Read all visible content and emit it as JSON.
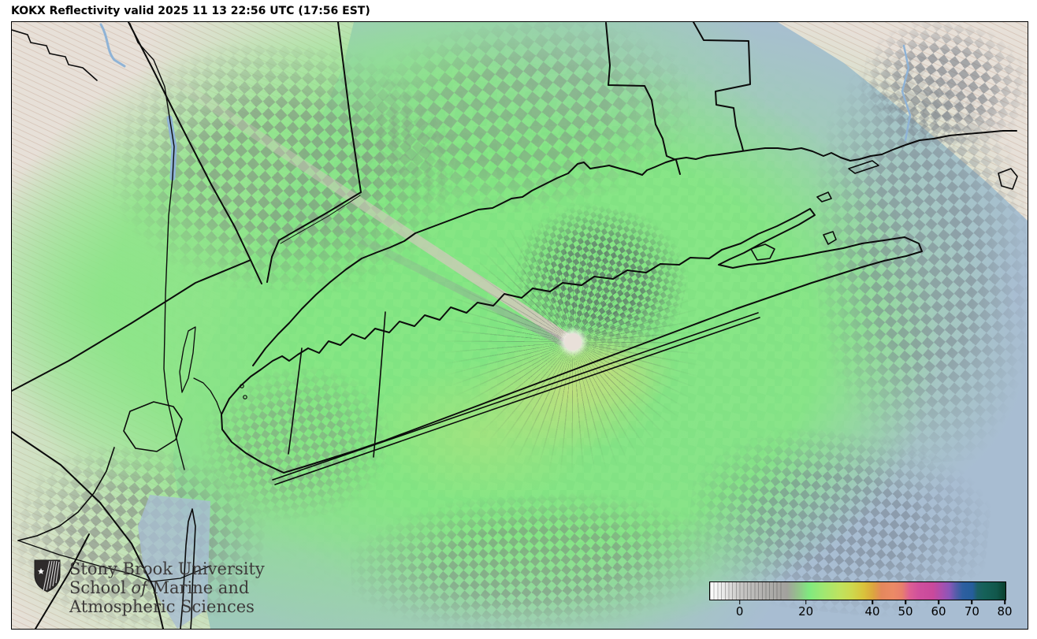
{
  "title": "KOKX Reflectivity valid 2025 11 13 22:56 UTC (17:56 EST)",
  "map": {
    "radar_site": "KOKX",
    "product": "Reflectivity"
  },
  "logo": {
    "line1": "Stony Brook University",
    "line2_pre": "School ",
    "line2_italic": "of",
    "line2_post": " Marine and",
    "line3": "Atmospheric Sciences"
  },
  "colorbar": {
    "ticks": [
      {
        "label": "0",
        "pos_pct": 10.3
      },
      {
        "label": "20",
        "pos_pct": 32.7
      },
      {
        "label": "40",
        "pos_pct": 55.2
      },
      {
        "label": "50",
        "pos_pct": 66.4
      },
      {
        "label": "60",
        "pos_pct": 77.6
      },
      {
        "label": "70",
        "pos_pct": 88.9
      },
      {
        "label": "80",
        "pos_pct": 100
      }
    ]
  },
  "chart_data": {
    "type": "heatmap",
    "title": "KOKX Reflectivity valid 2025 11 13 22:56 UTC (17:56 EST)",
    "colorbar_tick_values": [
      0,
      20,
      40,
      50,
      60,
      70,
      80
    ],
    "colorbar_estimated_range": [
      -10,
      80
    ],
    "colorbar_orientation": "horizontal",
    "colorbar_position": "bottom-right",
    "colormap_samples": [
      {
        "value": -10,
        "color": "#ffffff"
      },
      {
        "value": 0,
        "color": "#c8c7c5"
      },
      {
        "value": 10,
        "color": "#a2a19d"
      },
      {
        "value": 20,
        "color": "#7fe97f"
      },
      {
        "value": 30,
        "color": "#cdd94e"
      },
      {
        "value": 40,
        "color": "#dca63e"
      },
      {
        "value": 45,
        "color": "#e8835f"
      },
      {
        "value": 52,
        "color": "#dd5f93"
      },
      {
        "value": 58,
        "color": "#c9499c"
      },
      {
        "value": 63,
        "color": "#8b56b8"
      },
      {
        "value": 68,
        "color": "#2e5fa0"
      },
      {
        "value": 75,
        "color": "#13594f"
      },
      {
        "value": 80,
        "color": "#0a3f2c"
      }
    ]
  },
  "colors": {
    "ocean": "#a8bdd2",
    "terrain": "#e7e0d8",
    "terrain_shade": "#d9c9bd",
    "echo_green": "#85e785",
    "boundary": "#0b0b0b",
    "river_blue": "#8fb3d6",
    "logo_text": "#3d3a3a"
  }
}
